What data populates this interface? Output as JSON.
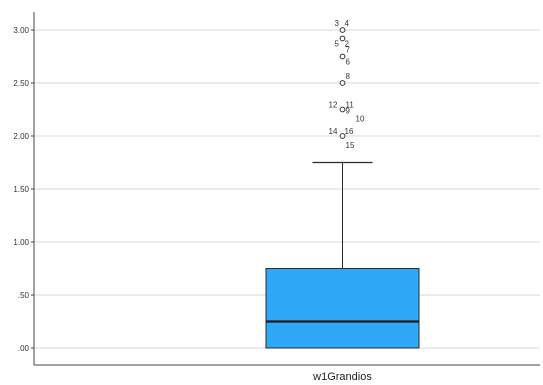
{
  "chart_data": {
    "type": "box",
    "categories": [
      "w1Grandios"
    ],
    "ylim": [
      -0.1,
      3.15
    ],
    "yticks": [
      {
        "value": 0.0,
        "label": ".00"
      },
      {
        "value": 0.5,
        "label": ".50"
      },
      {
        "value": 1.0,
        "label": "1.00"
      },
      {
        "value": 1.5,
        "label": "1.50"
      },
      {
        "value": 2.0,
        "label": "2.00"
      },
      {
        "value": 2.5,
        "label": "2.50"
      },
      {
        "value": 3.0,
        "label": "3.00"
      }
    ],
    "grid": true,
    "box": {
      "whisker_low": 0.0,
      "q1": 0.0,
      "median": 0.25,
      "q3": 0.75,
      "whisker_high": 1.75,
      "fill": "#2FA8F8",
      "stroke": "#2a2a2a"
    },
    "outliers": [
      {
        "value": 3.0,
        "labels": [
          "3",
          "4"
        ]
      },
      {
        "value": 2.92,
        "labels": [
          "5",
          "2"
        ]
      },
      {
        "value": 2.75,
        "labels": [
          "7",
          "6"
        ]
      },
      {
        "value": 2.5,
        "labels": [
          "8"
        ]
      },
      {
        "value": 2.25,
        "labels": [
          "12",
          "11",
          "9",
          "10"
        ]
      },
      {
        "value": 2.0,
        "labels": [
          "14",
          "16",
          "15"
        ]
      }
    ]
  }
}
